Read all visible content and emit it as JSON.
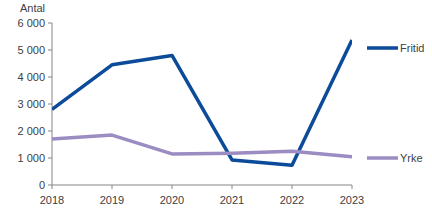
{
  "chart_data": {
    "type": "line",
    "y_label": "Antal",
    "categories": [
      "2018",
      "2019",
      "2020",
      "2021",
      "2022",
      "2023"
    ],
    "series": [
      {
        "name": "Fritid",
        "color": "#0B4B9A",
        "values": [
          2800,
          4450,
          4800,
          930,
          730,
          5370
        ]
      },
      {
        "name": "Yrke",
        "color": "#9B8CC2",
        "values": [
          1700,
          1850,
          1150,
          1180,
          1250,
          1050
        ]
      }
    ],
    "ylim": [
      0,
      6000
    ],
    "yticks": [
      0,
      {
        "value": 1000,
        "label": "1 000"
      },
      {
        "value": 2000,
        "label": "2 000"
      },
      {
        "value": 3000,
        "label": "3 000"
      },
      {
        "value": 4000,
        "label": "4 000"
      },
      {
        "value": 5000,
        "label": "5 000"
      },
      {
        "value": 6000,
        "label": "6 000"
      }
    ],
    "grid": false,
    "legend": "right"
  }
}
